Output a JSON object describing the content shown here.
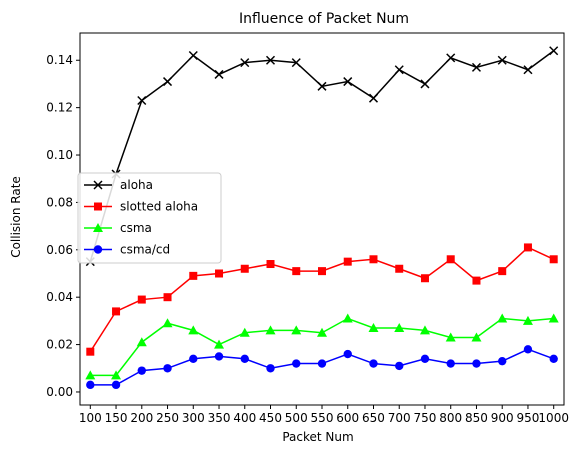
{
  "chart_data": {
    "type": "line",
    "title": "Influence of Packet Num",
    "xlabel": "Packet Num",
    "ylabel": "Collision Rate",
    "x": [
      100,
      150,
      200,
      250,
      300,
      350,
      400,
      450,
      500,
      550,
      600,
      650,
      700,
      750,
      800,
      850,
      900,
      950,
      1000
    ],
    "xlim": [
      80,
      1020
    ],
    "ylim": [
      -0.0055,
      0.1515
    ],
    "yticks": [
      0.0,
      0.02,
      0.04,
      0.06,
      0.08,
      0.1,
      0.12,
      0.14
    ],
    "ytick_labels": [
      "0.00",
      "0.02",
      "0.04",
      "0.06",
      "0.08",
      "0.10",
      "0.12",
      "0.14"
    ],
    "grid": false,
    "legend_position": "center-left",
    "series": [
      {
        "name": "aloha",
        "color": "#000000",
        "marker": "x",
        "values": [
          0.055,
          0.092,
          0.123,
          0.131,
          0.142,
          0.134,
          0.139,
          0.14,
          0.139,
          0.129,
          0.131,
          0.124,
          0.136,
          0.13,
          0.141,
          0.137,
          0.14,
          0.136,
          0.144
        ]
      },
      {
        "name": "slotted aloha",
        "color": "#ff0000",
        "marker": "square",
        "values": [
          0.017,
          0.034,
          0.039,
          0.04,
          0.049,
          0.05,
          0.052,
          0.054,
          0.051,
          0.051,
          0.055,
          0.056,
          0.052,
          0.048,
          0.056,
          0.047,
          0.051,
          0.061,
          0.056
        ]
      },
      {
        "name": "csma",
        "color": "#00ff00",
        "marker": "triangle",
        "values": [
          0.007,
          0.007,
          0.021,
          0.029,
          0.026,
          0.02,
          0.025,
          0.026,
          0.026,
          0.025,
          0.031,
          0.027,
          0.027,
          0.026,
          0.023,
          0.023,
          0.031,
          0.03,
          0.031
        ]
      },
      {
        "name": "csma/cd",
        "color": "#0000ff",
        "marker": "circle",
        "values": [
          0.003,
          0.003,
          0.009,
          0.01,
          0.014,
          0.015,
          0.014,
          0.01,
          0.012,
          0.012,
          0.016,
          0.012,
          0.011,
          0.014,
          0.012,
          0.012,
          0.013,
          0.018,
          0.014
        ]
      }
    ]
  }
}
